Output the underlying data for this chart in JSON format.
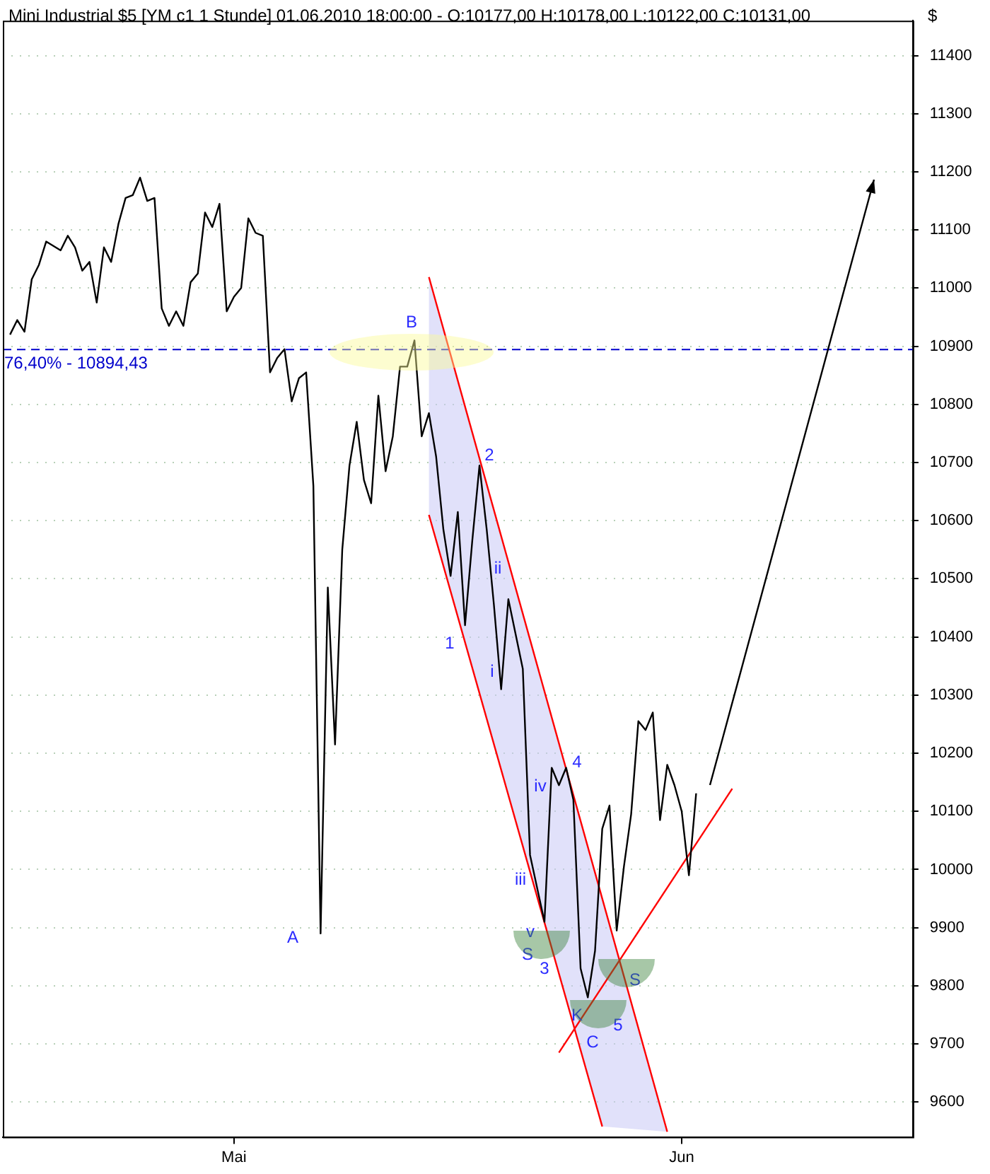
{
  "chart_data": {
    "type": "line",
    "title": "Mini Industrial $5 [YM c1 1 Stunde] 01.06.2010 18:00:00 - O:10177,00 H:10178,00 L:10122,00 C:10131,00",
    "ylabel": "$",
    "categories": [
      null,
      null,
      null,
      null,
      null,
      null,
      null,
      null,
      null,
      null,
      null,
      null,
      null,
      null,
      null,
      null,
      null,
      null,
      null,
      null,
      null,
      null,
      null,
      null,
      null,
      null,
      null,
      null,
      null,
      null,
      null,
      null,
      "Mai",
      null,
      null,
      null,
      null,
      null,
      null,
      null,
      null,
      null,
      null,
      null,
      null,
      null,
      null,
      null,
      null,
      null,
      null,
      null,
      null,
      null,
      null,
      null,
      null,
      null,
      null,
      null,
      null,
      null,
      null,
      null,
      null,
      null,
      null,
      null,
      null,
      null,
      null,
      null,
      null,
      null,
      null,
      null,
      null,
      null,
      null,
      null,
      null,
      null,
      null,
      null,
      null,
      null,
      null,
      null,
      null,
      null,
      null,
      null,
      null,
      null,
      "Jun",
      null,
      null,
      null,
      null,
      null,
      null,
      null,
      null,
      null,
      null,
      null,
      null,
      null,
      null,
      null,
      null,
      null,
      null,
      null,
      null,
      null,
      null,
      null,
      null,
      null,
      null,
      null,
      null,
      null,
      null,
      null,
      null
    ],
    "ylim": [
      9540,
      11460
    ],
    "yticks": [
      9600,
      9700,
      9800,
      9900,
      10000,
      10100,
      10200,
      10300,
      10400,
      10500,
      10600,
      10700,
      10800,
      10900,
      11000,
      11100,
      11200,
      11300,
      11400
    ],
    "grid": "y",
    "legend": false,
    "marker": "none",
    "line_style": "solid",
    "series": [
      {
        "type": "line",
        "color": "#000000",
        "values": [
          null,
          10920,
          10945,
          10925,
          11015,
          11040,
          11080,
          null,
          11065,
          11090,
          11070,
          11030,
          11045,
          10975,
          11070,
          11045,
          11110,
          11155,
          11160,
          11190,
          11150,
          11155,
          10965,
          10935,
          10960,
          10935,
          11010,
          11025,
          11130,
          11105,
          11145,
          10960,
          10985,
          11000,
          11120,
          11095,
          11090,
          10855,
          10880,
          10895,
          10805,
          10845,
          10855,
          10660,
          9890,
          10485,
          10215,
          10550,
          10695,
          10770,
          10670,
          10630,
          10815,
          10685,
          10745,
          10865,
          10865,
          10910,
          10745,
          10785,
          10710,
          10585,
          10505,
          10615,
          10420,
          10565,
          10695,
          10585,
          10455,
          10310,
          10465,
          10405,
          10345,
          10025,
          null,
          9910,
          10175,
          10145,
          10175,
          10120,
          9830,
          9780,
          9860,
          10070,
          10110,
          9895,
          10005,
          10095,
          10255,
          10240,
          10270,
          10085,
          10180,
          10145,
          10100,
          9990,
          10131,
          null,
          null,
          null,
          null,
          null,
          null,
          null,
          null,
          null,
          null,
          null,
          null,
          null,
          null,
          null,
          null,
          null,
          null,
          null,
          null,
          null,
          null,
          null,
          null,
          null,
          null,
          null,
          null,
          null,
          null
        ]
      },
      {
        "type": "line",
        "color": "#ff0000",
        "values": [
          null,
          null,
          null,
          null,
          null,
          null,
          null,
          null,
          null,
          null,
          null,
          null,
          null,
          null,
          null,
          null,
          null,
          null,
          null,
          null,
          null,
          null,
          null,
          null,
          null,
          null,
          null,
          null,
          null,
          null,
          null,
          null,
          null,
          null,
          null,
          null,
          null,
          null,
          null,
          null,
          null,
          null,
          null,
          null,
          null,
          null,
          null,
          null,
          null,
          null,
          null,
          null,
          null,
          null,
          null,
          null,
          null,
          null,
          null,
          11019,
          null,
          null,
          null,
          null,
          null,
          null,
          null,
          null,
          null,
          null,
          null,
          null,
          null,
          null,
          null,
          null,
          null,
          null,
          null,
          null,
          null,
          null,
          null,
          null,
          null,
          null,
          null,
          null,
          null,
          null,
          null,
          null,
          9549,
          null,
          null,
          null,
          null,
          null,
          null,
          null,
          null,
          null,
          null,
          null,
          null,
          null,
          null,
          null,
          null,
          null,
          null,
          null,
          null,
          null,
          null,
          null,
          null,
          null,
          null,
          null,
          null,
          null,
          null,
          null,
          null,
          null,
          null
        ]
      },
      {
        "type": "line",
        "color": "#ff0000",
        "values": [
          null,
          null,
          null,
          null,
          null,
          null,
          null,
          null,
          null,
          null,
          null,
          null,
          null,
          null,
          null,
          null,
          null,
          null,
          null,
          null,
          null,
          null,
          null,
          null,
          null,
          null,
          null,
          null,
          null,
          null,
          null,
          null,
          null,
          null,
          null,
          null,
          null,
          null,
          null,
          null,
          null,
          null,
          null,
          null,
          null,
          null,
          null,
          null,
          null,
          null,
          null,
          null,
          null,
          null,
          null,
          null,
          null,
          null,
          null,
          10610,
          null,
          null,
          null,
          null,
          null,
          null,
          null,
          null,
          null,
          null,
          null,
          null,
          null,
          null,
          null,
          null,
          null,
          null,
          null,
          null,
          null,
          null,
          null,
          9558,
          null,
          null,
          null,
          null,
          null,
          null,
          null,
          null,
          null,
          null,
          null,
          null,
          null,
          null,
          null,
          null,
          null,
          null,
          null,
          null,
          null,
          null,
          null,
          null,
          null,
          null,
          null,
          null,
          null,
          null,
          null,
          null,
          null,
          null,
          null,
          null,
          null,
          null,
          null,
          null,
          null,
          null,
          null
        ]
      },
      {
        "type": "line",
        "color": "#ff0000",
        "values": [
          null,
          null,
          null,
          null,
          null,
          null,
          null,
          null,
          null,
          null,
          null,
          null,
          null,
          null,
          null,
          null,
          null,
          null,
          null,
          null,
          null,
          null,
          null,
          null,
          null,
          null,
          null,
          null,
          null,
          null,
          null,
          null,
          null,
          null,
          null,
          null,
          null,
          null,
          null,
          null,
          null,
          null,
          null,
          null,
          null,
          null,
          null,
          null,
          null,
          null,
          null,
          null,
          null,
          null,
          null,
          null,
          null,
          null,
          null,
          null,
          null,
          null,
          null,
          null,
          null,
          null,
          null,
          null,
          null,
          null,
          null,
          null,
          null,
          null,
          null,
          null,
          null,
          9685,
          null,
          null,
          null,
          null,
          null,
          null,
          null,
          null,
          null,
          null,
          null,
          null,
          null,
          null,
          null,
          null,
          null,
          null,
          null,
          null,
          null,
          null,
          null,
          10139,
          null,
          null,
          null,
          null,
          null,
          null,
          null,
          null,
          null,
          null,
          null,
          null,
          null,
          null,
          null,
          null,
          null,
          null,
          null,
          null,
          null,
          null,
          null,
          null,
          null
        ]
      }
    ],
    "ref_lines": [
      {
        "axis": "y",
        "value": 10894.43,
        "color": "#0000cc",
        "line_style": "dashed"
      }
    ],
    "annotations": [
      "A",
      "B",
      "1",
      "2",
      "i",
      "ii",
      "iii",
      "iv",
      "4",
      "v",
      "S",
      "3",
      "K",
      "C",
      "5",
      "S",
      {
        "text": "76,40% - 10894,43",
        "y": 10894.43
      }
    ]
  }
}
